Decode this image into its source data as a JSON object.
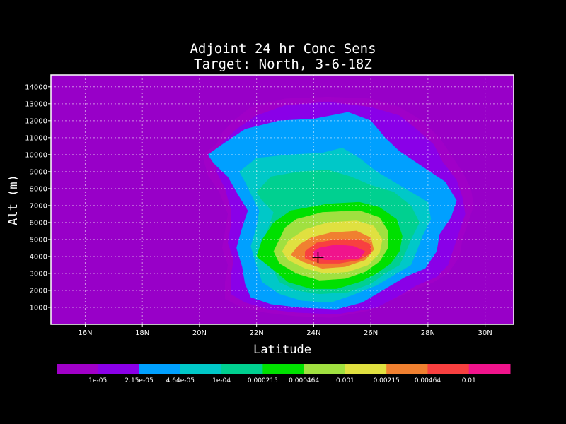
{
  "chart_data": {
    "type": "heatmap",
    "title": "Adjoint 24 hr Conc Sens",
    "subtitle": "Target: North, 3-6-18Z",
    "xlabel": "Latitude",
    "ylabel": "Alt (m)",
    "x_ticks": [
      "16N",
      "18N",
      "20N",
      "22N",
      "24N",
      "26N",
      "28N",
      "30N"
    ],
    "y_ticks": [
      "1000",
      "2000",
      "3000",
      "4000",
      "5000",
      "6000",
      "7000",
      "8000",
      "9000",
      "10000",
      "11000",
      "12000",
      "13000",
      "14000"
    ],
    "xlim": [
      14.8,
      31.0
    ],
    "ylim": [
      0,
      14700
    ],
    "grid": true,
    "background_color": "#9800c8",
    "target_marker": {
      "lat": 24.15,
      "alt": 3950,
      "symbol": "+"
    },
    "levels": [
      {
        "label": "1e-05",
        "color": "#a000c8",
        "contour": [
          [
            20.1,
            10000
          ],
          [
            20.6,
            10600
          ],
          [
            20.8,
            11300
          ],
          [
            21.2,
            12000
          ],
          [
            21.8,
            12800
          ],
          [
            23.0,
            13300
          ],
          [
            24.5,
            13400
          ],
          [
            26.0,
            13300
          ],
          [
            27.0,
            12800
          ],
          [
            27.8,
            12000
          ],
          [
            28.4,
            11000
          ],
          [
            28.8,
            10000
          ],
          [
            29.2,
            9000
          ],
          [
            29.5,
            8000
          ],
          [
            29.6,
            7000
          ],
          [
            29.4,
            6000
          ],
          [
            29.2,
            5000
          ],
          [
            29.1,
            4000
          ],
          [
            28.7,
            3000
          ],
          [
            28.2,
            2500
          ],
          [
            27.5,
            2000
          ],
          [
            26.8,
            1500
          ],
          [
            25.9,
            800
          ],
          [
            24.6,
            400
          ],
          [
            23.3,
            500
          ],
          [
            22.3,
            700
          ],
          [
            21.5,
            1000
          ],
          [
            20.9,
            1500
          ],
          [
            20.9,
            2500
          ],
          [
            21.0,
            3500
          ],
          [
            20.8,
            4500
          ],
          [
            20.9,
            5500
          ],
          [
            21.0,
            6500
          ],
          [
            20.7,
            7800
          ],
          [
            20.3,
            8800
          ]
        ]
      },
      {
        "label": "2.15e-05",
        "color": "#8a00e8",
        "contour": [
          [
            20.5,
            10000
          ],
          [
            20.8,
            10700
          ],
          [
            21.3,
            11500
          ],
          [
            22.0,
            12300
          ],
          [
            23.0,
            12900
          ],
          [
            24.5,
            13100
          ],
          [
            26.0,
            12800
          ],
          [
            27.0,
            12300
          ],
          [
            27.6,
            11500
          ],
          [
            28.2,
            10600
          ],
          [
            28.5,
            9600
          ],
          [
            29.0,
            8500
          ],
          [
            29.2,
            7500
          ],
          [
            29.3,
            6500
          ],
          [
            29.1,
            5500
          ],
          [
            28.9,
            4500
          ],
          [
            28.7,
            3500
          ],
          [
            28.3,
            2800
          ],
          [
            27.6,
            2300
          ],
          [
            27.0,
            1700
          ],
          [
            26.2,
            1000
          ],
          [
            24.8,
            600
          ],
          [
            23.4,
            700
          ],
          [
            22.4,
            900
          ],
          [
            21.6,
            1300
          ],
          [
            21.1,
            1800
          ],
          [
            21.1,
            2800
          ],
          [
            21.2,
            3800
          ],
          [
            21.0,
            4800
          ],
          [
            21.1,
            5800
          ],
          [
            21.1,
            6800
          ],
          [
            20.9,
            8000
          ],
          [
            20.6,
            9000
          ]
        ]
      },
      {
        "label": "4.64e-05",
        "color": "#00a0ff",
        "contour": [
          [
            20.3,
            10000
          ],
          [
            20.8,
            10600
          ],
          [
            21.6,
            11500
          ],
          [
            22.8,
            12000
          ],
          [
            24.0,
            12100
          ],
          [
            25.2,
            12500
          ],
          [
            26.0,
            12000
          ],
          [
            26.5,
            11000
          ],
          [
            27.0,
            10200
          ],
          [
            27.8,
            9300
          ],
          [
            28.6,
            8400
          ],
          [
            29.0,
            7300
          ],
          [
            28.8,
            6300
          ],
          [
            28.4,
            5300
          ],
          [
            28.3,
            4300
          ],
          [
            27.9,
            3300
          ],
          [
            27.2,
            2800
          ],
          [
            26.5,
            2100
          ],
          [
            25.7,
            1300
          ],
          [
            24.8,
            900
          ],
          [
            23.5,
            1000
          ],
          [
            22.5,
            1200
          ],
          [
            21.8,
            1600
          ],
          [
            21.6,
            2400
          ],
          [
            21.5,
            3400
          ],
          [
            21.3,
            4500
          ],
          [
            21.5,
            5700
          ],
          [
            21.7,
            6700
          ],
          [
            21.3,
            7800
          ],
          [
            21.0,
            8700
          ],
          [
            20.5,
            9500
          ]
        ]
      },
      {
        "label": "1e-04",
        "color": "#00c8c8",
        "contour": [
          [
            21.4,
            9000
          ],
          [
            22.0,
            9800
          ],
          [
            23.2,
            10000
          ],
          [
            24.3,
            10100
          ],
          [
            25.0,
            10400
          ],
          [
            25.6,
            9800
          ],
          [
            26.2,
            9000
          ],
          [
            27.0,
            8200
          ],
          [
            28.0,
            7200
          ],
          [
            28.1,
            6200
          ],
          [
            27.8,
            5200
          ],
          [
            27.6,
            4300
          ],
          [
            27.4,
            3500
          ],
          [
            26.8,
            2900
          ],
          [
            26.2,
            2300
          ],
          [
            25.3,
            1700
          ],
          [
            24.6,
            1300
          ],
          [
            23.6,
            1400
          ],
          [
            22.8,
            1800
          ],
          [
            22.2,
            2500
          ],
          [
            22.0,
            3500
          ],
          [
            21.8,
            4600
          ],
          [
            22.0,
            5700
          ],
          [
            22.1,
            6700
          ],
          [
            21.8,
            7700
          ],
          [
            21.6,
            8400
          ]
        ]
      },
      {
        "label": "0.000215",
        "color": "#00d090",
        "contour": [
          [
            22.0,
            7800
          ],
          [
            22.5,
            8700
          ],
          [
            23.5,
            9000
          ],
          [
            24.5,
            9100
          ],
          [
            25.3,
            8700
          ],
          [
            26.0,
            8200
          ],
          [
            26.8,
            7800
          ],
          [
            27.4,
            7000
          ],
          [
            27.7,
            6000
          ],
          [
            27.4,
            5000
          ],
          [
            27.2,
            4200
          ],
          [
            27.0,
            3500
          ],
          [
            26.5,
            3000
          ],
          [
            26.0,
            2400
          ],
          [
            25.2,
            1900
          ],
          [
            24.2,
            1800
          ],
          [
            23.4,
            2000
          ],
          [
            22.8,
            2500
          ],
          [
            22.5,
            3500
          ],
          [
            22.3,
            4500
          ],
          [
            22.4,
            5600
          ],
          [
            22.6,
            6600
          ],
          [
            22.2,
            7300
          ]
        ]
      },
      {
        "label": "0.000464",
        "color": "#00e000",
        "contour": [
          [
            23.2,
            6700
          ],
          [
            24.5,
            7100
          ],
          [
            25.6,
            7200
          ],
          [
            26.3,
            6900
          ],
          [
            26.9,
            6200
          ],
          [
            27.1,
            5200
          ],
          [
            27.0,
            4300
          ],
          [
            26.7,
            3600
          ],
          [
            26.2,
            3000
          ],
          [
            25.6,
            2500
          ],
          [
            24.8,
            2100
          ],
          [
            23.9,
            2100
          ],
          [
            23.1,
            2500
          ],
          [
            22.6,
            3200
          ],
          [
            22.0,
            4000
          ],
          [
            22.2,
            5000
          ],
          [
            22.6,
            6000
          ]
        ]
      },
      {
        "label": "0.001",
        "color": "#a0e040",
        "contour": [
          [
            23.4,
            6200
          ],
          [
            24.3,
            6600
          ],
          [
            25.6,
            6700
          ],
          [
            26.3,
            6300
          ],
          [
            26.6,
            5500
          ],
          [
            26.6,
            4500
          ],
          [
            26.3,
            3700
          ],
          [
            25.8,
            3100
          ],
          [
            25.1,
            2700
          ],
          [
            24.2,
            2600
          ],
          [
            23.4,
            3000
          ],
          [
            22.8,
            3600
          ],
          [
            22.6,
            4300
          ],
          [
            22.8,
            5000
          ],
          [
            23.0,
            5700
          ]
        ]
      },
      {
        "label": "0.00215",
        "color": "#e0e040",
        "contour": [
          [
            23.7,
            5600
          ],
          [
            24.5,
            6000
          ],
          [
            25.5,
            6100
          ],
          [
            26.1,
            5800
          ],
          [
            26.4,
            5000
          ],
          [
            26.3,
            4200
          ],
          [
            25.9,
            3500
          ],
          [
            25.2,
            3100
          ],
          [
            24.4,
            3000
          ],
          [
            23.7,
            3300
          ],
          [
            23.1,
            3800
          ],
          [
            22.9,
            4300
          ],
          [
            23.1,
            4900
          ]
        ]
      },
      {
        "label": "0.00464",
        "color": "#f08030",
        "contour": [
          [
            23.9,
            5100
          ],
          [
            24.6,
            5400
          ],
          [
            25.5,
            5500
          ],
          [
            26.0,
            5100
          ],
          [
            26.1,
            4400
          ],
          [
            25.8,
            3800
          ],
          [
            25.1,
            3400
          ],
          [
            24.3,
            3300
          ],
          [
            23.6,
            3700
          ],
          [
            23.2,
            4100
          ],
          [
            23.5,
            4700
          ]
        ]
      },
      {
        "label": "0.01",
        "color": "#f84040",
        "contour": [
          [
            24.1,
            4800
          ],
          [
            24.8,
            5000
          ],
          [
            25.6,
            5000
          ],
          [
            26.0,
            4700
          ],
          [
            26.0,
            4200
          ],
          [
            25.6,
            3800
          ],
          [
            24.9,
            3600
          ],
          [
            24.2,
            3600
          ],
          [
            23.7,
            3900
          ],
          [
            23.7,
            4300
          ]
        ]
      },
      {
        "label": "",
        "color": "#f0148c",
        "contour": [
          [
            24.2,
            4500
          ],
          [
            24.8,
            4700
          ],
          [
            25.4,
            4600
          ],
          [
            25.8,
            4300
          ],
          [
            25.6,
            3900
          ],
          [
            25.0,
            3800
          ],
          [
            24.4,
            3800
          ],
          [
            24.0,
            4000
          ],
          [
            24.0,
            4300
          ]
        ]
      }
    ],
    "colorbar_ticks": [
      "1e-05",
      "2.15e-05",
      "4.64e-05",
      "1e-04",
      "0.000215",
      "0.000464",
      "0.001",
      "0.00215",
      "0.00464",
      "0.01"
    ]
  }
}
